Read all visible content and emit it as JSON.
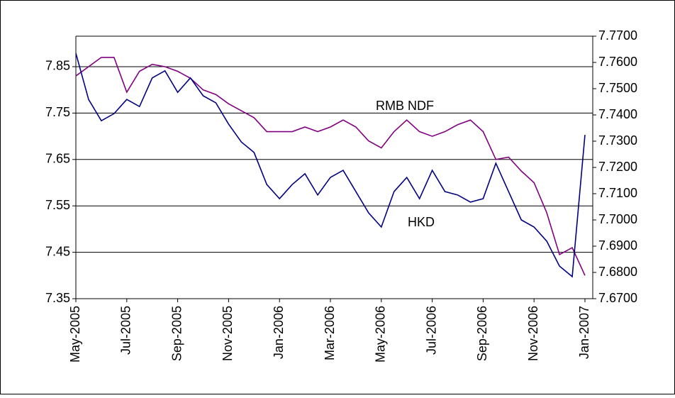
{
  "chart_data": {
    "type": "line",
    "categories": [
      "May-2005",
      null,
      null,
      null,
      "Jul-2005",
      null,
      null,
      null,
      "Sep-2005",
      null,
      null,
      null,
      "Nov-2005",
      null,
      null,
      null,
      "Jan-2006",
      null,
      null,
      null,
      "Mar-2006",
      null,
      null,
      null,
      "May-2006",
      null,
      null,
      null,
      "Jul-2006",
      null,
      null,
      null,
      "Sep-2006",
      null,
      null,
      null,
      "Nov-2006",
      null,
      null,
      null,
      "Jan-2007"
    ],
    "series": [
      {
        "name": "RMB NDF",
        "color": "#800080",
        "axis": "y",
        "values": [
          7.83,
          7.85,
          7.87,
          7.87,
          7.795,
          7.84,
          7.855,
          7.85,
          7.84,
          7.825,
          7.8,
          7.79,
          7.77,
          7.755,
          7.74,
          7.71,
          7.71,
          7.71,
          7.72,
          7.71,
          7.72,
          7.735,
          7.72,
          7.69,
          7.675,
          7.71,
          7.735,
          7.71,
          7.7,
          7.71,
          7.725,
          7.735,
          7.71,
          7.65,
          7.655,
          7.625,
          7.6,
          7.535,
          7.445,
          7.46,
          7.4
        ]
      },
      {
        "name": "HKD",
        "color": "#000080",
        "axis": "y2",
        "values": [
          7.7635,
          7.7459,
          7.7378,
          7.7405,
          7.7459,
          7.7432,
          7.7541,
          7.7568,
          7.7486,
          7.7541,
          7.7473,
          7.7446,
          7.7365,
          7.7297,
          7.7257,
          7.7135,
          7.7081,
          7.7135,
          7.7176,
          7.7095,
          7.7162,
          7.7189,
          7.7108,
          7.7027,
          7.6973,
          7.7108,
          7.7162,
          7.7081,
          7.7189,
          7.7108,
          7.7095,
          7.7068,
          7.7081,
          7.7216,
          7.7108,
          7.7,
          7.6973,
          7.6919,
          7.6824,
          7.6784,
          7.7324
        ]
      }
    ],
    "ylim": [
      7.35,
      7.9157
    ],
    "yticks": [
      7.35,
      7.45,
      7.55,
      7.65,
      7.75,
      7.85
    ],
    "y2lim": [
      7.67,
      7.77
    ],
    "y2ticks": [
      {
        "value": 7.67,
        "label": "7.6700"
      },
      {
        "value": 7.68,
        "label": "7.6800"
      },
      {
        "value": 7.69,
        "label": "7.6900"
      },
      {
        "value": 7.7,
        "label": "7.7000"
      },
      {
        "value": 7.71,
        "label": "7.7100"
      },
      {
        "value": 7.72,
        "label": "7.7200"
      },
      {
        "value": 7.73,
        "label": "7.7300"
      },
      {
        "value": 7.74,
        "label": "7.7400"
      },
      {
        "value": 7.75,
        "label": "7.7500"
      },
      {
        "value": 7.76,
        "label": "7.7600"
      },
      {
        "value": 7.77,
        "label": "7.7700"
      }
    ],
    "grid": true,
    "annotations": [
      "RMB NDF",
      "HKD"
    ]
  }
}
